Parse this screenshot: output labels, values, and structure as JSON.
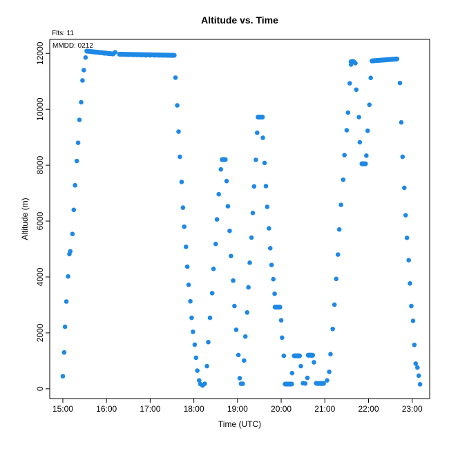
{
  "chart_data": {
    "type": "scatter",
    "title": "Altitude  vs. Time",
    "xlabel": "Time (UTC)",
    "ylabel": "Altitude (m)",
    "annotations": {
      "flights": "Flts: 11",
      "date": "MMDD: 0212"
    },
    "xlim": [
      14.7,
      23.4
    ],
    "ylim": [
      -350,
      12500
    ],
    "x_ticks": [
      15,
      16,
      17,
      18,
      19,
      20,
      21,
      22,
      23
    ],
    "x_tick_labels": [
      "15:00",
      "16:00",
      "17:00",
      "18:00",
      "19:00",
      "20:00",
      "21:00",
      "22:00",
      "23:00"
    ],
    "y_ticks": [
      0,
      2000,
      4000,
      6000,
      8000,
      10000,
      12000
    ],
    "y_tick_labels": [
      "0",
      "2000",
      "4000",
      "6000",
      "8000",
      "10000",
      "12000"
    ],
    "grid": false,
    "point_color": "#1e88e5",
    "points": [
      [
        15.0,
        450
      ],
      [
        15.03,
        1300
      ],
      [
        15.05,
        2220
      ],
      [
        15.08,
        3120
      ],
      [
        15.12,
        4020
      ],
      [
        15.15,
        4820
      ],
      [
        15.17,
        4920
      ],
      [
        15.22,
        5540
      ],
      [
        15.25,
        6400
      ],
      [
        15.28,
        7280
      ],
      [
        15.32,
        8150
      ],
      [
        15.35,
        8800
      ],
      [
        15.38,
        9620
      ],
      [
        15.42,
        10250
      ],
      [
        15.45,
        11030
      ],
      [
        15.48,
        11400
      ],
      [
        15.52,
        11850
      ],
      [
        15.55,
        12080
      ],
      [
        15.65,
        12060
      ],
      [
        15.75,
        12040
      ],
      [
        15.85,
        12020
      ],
      [
        15.95,
        12000
      ],
      [
        16.05,
        11990
      ],
      [
        16.15,
        11980
      ],
      [
        16.2,
        12040
      ],
      [
        16.3,
        11970
      ],
      [
        16.4,
        11960
      ],
      [
        16.5,
        11950
      ],
      [
        16.6,
        11945
      ],
      [
        16.7,
        11940
      ],
      [
        16.8,
        11935
      ],
      [
        16.9,
        11930
      ],
      [
        17.0,
        11930
      ],
      [
        17.1,
        11930
      ],
      [
        17.2,
        11930
      ],
      [
        17.3,
        11930
      ],
      [
        17.4,
        11930
      ],
      [
        17.5,
        11930
      ],
      [
        17.55,
        11930
      ],
      [
        17.58,
        11130
      ],
      [
        17.62,
        10140
      ],
      [
        17.65,
        9200
      ],
      [
        17.68,
        8300
      ],
      [
        17.72,
        7400
      ],
      [
        17.75,
        6480
      ],
      [
        17.78,
        5800
      ],
      [
        17.82,
        5080
      ],
      [
        17.85,
        4370
      ],
      [
        17.88,
        3720
      ],
      [
        17.92,
        3130
      ],
      [
        17.95,
        2540
      ],
      [
        17.98,
        2040
      ],
      [
        18.02,
        1580
      ],
      [
        18.05,
        1110
      ],
      [
        18.08,
        650
      ],
      [
        18.12,
        300
      ],
      [
        18.15,
        170
      ],
      [
        18.2,
        120
      ],
      [
        18.25,
        180
      ],
      [
        18.3,
        810
      ],
      [
        18.33,
        1670
      ],
      [
        18.37,
        2540
      ],
      [
        18.42,
        3420
      ],
      [
        18.45,
        4290
      ],
      [
        18.5,
        5180
      ],
      [
        18.53,
        6060
      ],
      [
        18.57,
        6960
      ],
      [
        18.62,
        7850
      ],
      [
        18.65,
        8200
      ],
      [
        18.7,
        8200
      ],
      [
        18.75,
        7430
      ],
      [
        18.78,
        6530
      ],
      [
        18.82,
        5650
      ],
      [
        18.85,
        4750
      ],
      [
        18.9,
        3870
      ],
      [
        18.93,
        2960
      ],
      [
        18.97,
        2110
      ],
      [
        19.02,
        1210
      ],
      [
        19.05,
        380
      ],
      [
        19.08,
        180
      ],
      [
        19.12,
        180
      ],
      [
        19.15,
        1010
      ],
      [
        19.18,
        1870
      ],
      [
        19.22,
        2730
      ],
      [
        19.25,
        3630
      ],
      [
        19.28,
        4510
      ],
      [
        19.32,
        5410
      ],
      [
        19.35,
        6290
      ],
      [
        19.38,
        7240
      ],
      [
        19.42,
        8190
      ],
      [
        19.45,
        9160
      ],
      [
        19.48,
        9720
      ],
      [
        19.55,
        9720
      ],
      [
        19.58,
        8980
      ],
      [
        19.62,
        8080
      ],
      [
        19.65,
        7250
      ],
      [
        19.68,
        6510
      ],
      [
        19.72,
        5740
      ],
      [
        19.75,
        5030
      ],
      [
        19.78,
        4430
      ],
      [
        19.82,
        3920
      ],
      [
        19.85,
        3400
      ],
      [
        19.88,
        2920
      ],
      [
        19.95,
        2920
      ],
      [
        20.0,
        2450
      ],
      [
        20.02,
        1830
      ],
      [
        20.06,
        1180
      ],
      [
        20.1,
        170
      ],
      [
        20.2,
        170
      ],
      [
        20.25,
        560
      ],
      [
        20.3,
        1180
      ],
      [
        20.4,
        1180
      ],
      [
        20.45,
        810
      ],
      [
        20.5,
        200
      ],
      [
        20.55,
        190
      ],
      [
        20.6,
        390
      ],
      [
        20.65,
        1210
      ],
      [
        20.7,
        1190
      ],
      [
        20.75,
        950
      ],
      [
        20.8,
        200
      ],
      [
        20.85,
        190
      ],
      [
        20.95,
        190
      ],
      [
        21.05,
        300
      ],
      [
        21.1,
        610
      ],
      [
        21.13,
        1240
      ],
      [
        21.18,
        2140
      ],
      [
        21.22,
        3010
      ],
      [
        21.26,
        3930
      ],
      [
        21.3,
        4800
      ],
      [
        21.33,
        5700
      ],
      [
        21.37,
        6580
      ],
      [
        21.42,
        7480
      ],
      [
        21.45,
        8360
      ],
      [
        21.5,
        9250
      ],
      [
        21.53,
        9880
      ],
      [
        21.57,
        10930
      ],
      [
        21.6,
        11600
      ],
      [
        21.63,
        11720
      ],
      [
        21.7,
        11650
      ],
      [
        21.72,
        10700
      ],
      [
        21.78,
        9720
      ],
      [
        21.8,
        8820
      ],
      [
        21.85,
        8050
      ],
      [
        21.92,
        8050
      ],
      [
        21.95,
        8340
      ],
      [
        21.98,
        9230
      ],
      [
        22.02,
        10160
      ],
      [
        22.05,
        11120
      ],
      [
        22.08,
        11730
      ],
      [
        22.2,
        11750
      ],
      [
        22.3,
        11760
      ],
      [
        22.4,
        11770
      ],
      [
        22.5,
        11780
      ],
      [
        22.6,
        11800
      ],
      [
        22.65,
        11800
      ],
      [
        22.72,
        10940
      ],
      [
        22.75,
        9530
      ],
      [
        22.78,
        8300
      ],
      [
        22.82,
        7190
      ],
      [
        22.85,
        6210
      ],
      [
        22.88,
        5400
      ],
      [
        22.92,
        4600
      ],
      [
        22.95,
        3770
      ],
      [
        22.98,
        2960
      ],
      [
        23.02,
        2430
      ],
      [
        23.05,
        1570
      ],
      [
        23.08,
        900
      ],
      [
        23.12,
        760
      ],
      [
        23.15,
        470
      ],
      [
        23.18,
        160
      ]
    ],
    "segments": [
      {
        "from": [
          15.55,
          12080
        ],
        "to": [
          16.15,
          11980
        ]
      },
      {
        "from": [
          16.3,
          11970
        ],
        "to": [
          17.55,
          11930
        ]
      },
      {
        "from": [
          18.65,
          8200
        ],
        "to": [
          18.72,
          8200
        ]
      },
      {
        "from": [
          19.47,
          9720
        ],
        "to": [
          19.57,
          9720
        ]
      },
      {
        "from": [
          19.86,
          2920
        ],
        "to": [
          19.97,
          2920
        ]
      },
      {
        "from": [
          20.09,
          170
        ],
        "to": [
          20.24,
          170
        ]
      },
      {
        "from": [
          20.3,
          1180
        ],
        "to": [
          20.42,
          1180
        ]
      },
      {
        "from": [
          20.62,
          1200
        ],
        "to": [
          20.72,
          1200
        ]
      },
      {
        "from": [
          20.82,
          190
        ],
        "to": [
          20.97,
          190
        ]
      },
      {
        "from": [
          21.6,
          11700
        ],
        "to": [
          21.66,
          11700
        ]
      },
      {
        "from": [
          21.85,
          8050
        ],
        "to": [
          21.93,
          8050
        ]
      },
      {
        "from": [
          22.08,
          11730
        ],
        "to": [
          22.65,
          11800
        ]
      }
    ]
  }
}
